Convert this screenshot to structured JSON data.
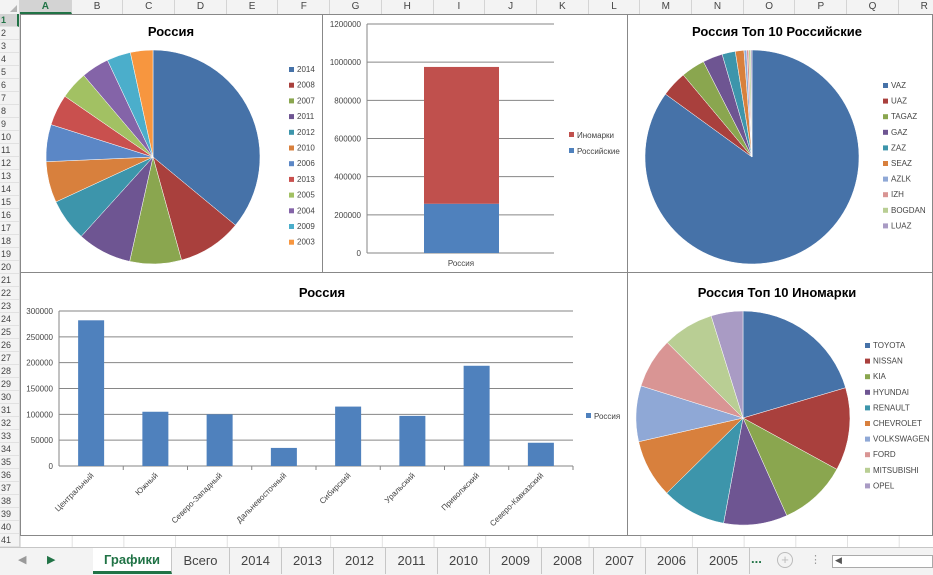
{
  "columns": [
    "A",
    "B",
    "C",
    "D",
    "E",
    "F",
    "G",
    "H",
    "I",
    "J",
    "K",
    "L",
    "M",
    "N",
    "O",
    "P",
    "Q",
    "R"
  ],
  "selected_column": "A",
  "rows": [
    "1",
    "2",
    "3",
    "4",
    "5",
    "6",
    "7",
    "8",
    "9",
    "10",
    "11",
    "12",
    "13",
    "14",
    "15",
    "16",
    "17",
    "18",
    "19",
    "20",
    "21",
    "22",
    "23",
    "24",
    "25",
    "26",
    "27",
    "28",
    "29",
    "30",
    "31",
    "32",
    "33",
    "34",
    "35",
    "36",
    "37",
    "38",
    "39",
    "40",
    "41"
  ],
  "selected_row": "1",
  "sheet_tabs": [
    {
      "label": "Графики",
      "active": true
    },
    {
      "label": "Всего"
    },
    {
      "label": "2014"
    },
    {
      "label": "2013"
    },
    {
      "label": "2012"
    },
    {
      "label": "2011"
    },
    {
      "label": "2010"
    },
    {
      "label": "2009"
    },
    {
      "label": "2008"
    },
    {
      "label": "2007"
    },
    {
      "label": "2006"
    },
    {
      "label": "2005"
    }
  ],
  "tab_bar": {
    "more_label": "...",
    "add_icon": "plus-circle-icon",
    "prev_icon": "triangle-left-icon",
    "next_icon": "triangle-right-icon"
  },
  "chart_data": [
    {
      "type": "pie",
      "title": "Россия",
      "legend": "right",
      "labels": [
        "2014",
        "2008",
        "2007",
        "2011",
        "2012",
        "2010",
        "2006",
        "2013",
        "2005",
        "2004",
        "2009",
        "2003"
      ],
      "values": [
        36.0,
        9.7,
        7.8,
        8.2,
        6.4,
        6.2,
        5.6,
        4.7,
        4.2,
        4.2,
        3.6,
        3.4
      ],
      "unit": "percent (estimated)",
      "colors": [
        "#4672A8",
        "#A9403D",
        "#8AA64F",
        "#6E5592",
        "#3D95AB",
        "#D8803D",
        "#5B87C6",
        "#C9504E",
        "#A2C163",
        "#8464A8",
        "#4BAECB",
        "#F7963F"
      ]
    },
    {
      "type": "bar",
      "stacked": true,
      "title": "",
      "categories": [
        "Россия"
      ],
      "series": [
        {
          "name": "Российские",
          "values": [
            258000
          ],
          "color": "#4F81BD"
        },
        {
          "name": "Иномарки",
          "values": [
            717000
          ],
          "color": "#C0504D"
        }
      ],
      "legend_order": [
        "Иномарки",
        "Российские"
      ],
      "legend": "right",
      "ylim": [
        0,
        1200000
      ],
      "yticks": [
        "0",
        "200000",
        "400000",
        "600000",
        "800000",
        "1000000",
        "1200000"
      ],
      "grid": true
    },
    {
      "type": "pie",
      "title": "Россия Топ 10 Российские",
      "legend": "right",
      "labels": [
        "VAZ",
        "UAZ",
        "TAGAZ",
        "GAZ",
        "ZAZ",
        "SEAZ",
        "AZLK",
        "IZH",
        "BOGDAN",
        "LUAZ"
      ],
      "values": [
        85.0,
        3.9,
        3.6,
        3.0,
        2.0,
        1.3,
        0.4,
        0.3,
        0.3,
        0.2
      ],
      "unit": "percent (estimated)",
      "colors": [
        "#4672A8",
        "#A9403D",
        "#8AA64F",
        "#6E5592",
        "#3D95AB",
        "#D8803D",
        "#8FA8D6",
        "#D99594",
        "#B9CE94",
        "#A99BC4"
      ]
    },
    {
      "type": "bar",
      "title": "Россия",
      "categories": [
        "Центральный",
        "Южный",
        "Северо-Западный",
        "Дальневосточный",
        "Сибирский",
        "Уральский",
        "Приволжский",
        "Северо-Кавказский"
      ],
      "series": [
        {
          "name": "Россия",
          "values": [
            282000,
            105000,
            100000,
            35000,
            115000,
            97000,
            194000,
            45000
          ],
          "color": "#4F81BD"
        }
      ],
      "legend": "right",
      "ylim": [
        0,
        300000
      ],
      "yticks": [
        "0",
        "50000",
        "100000",
        "150000",
        "200000",
        "250000",
        "300000"
      ],
      "grid": true
    },
    {
      "type": "pie",
      "title": "Россия Топ 10 Иномарки",
      "legend": "right",
      "labels": [
        "TOYOTA",
        "NISSAN",
        "KIA",
        "HYUNDAI",
        "RENAULT",
        "CHEVROLET",
        "VOLKSWAGEN",
        "FORD",
        "MITSUBISHI",
        "OPEL"
      ],
      "values": [
        20.4,
        12.5,
        10.3,
        9.6,
        9.7,
        8.8,
        8.4,
        7.6,
        7.7,
        4.8
      ],
      "unit": "percent (estimated)",
      "colors": [
        "#4672A8",
        "#A9403D",
        "#8AA64F",
        "#6E5592",
        "#3D95AB",
        "#D8803D",
        "#8FA8D6",
        "#D99594",
        "#B9CE94",
        "#A99BC4"
      ]
    }
  ]
}
